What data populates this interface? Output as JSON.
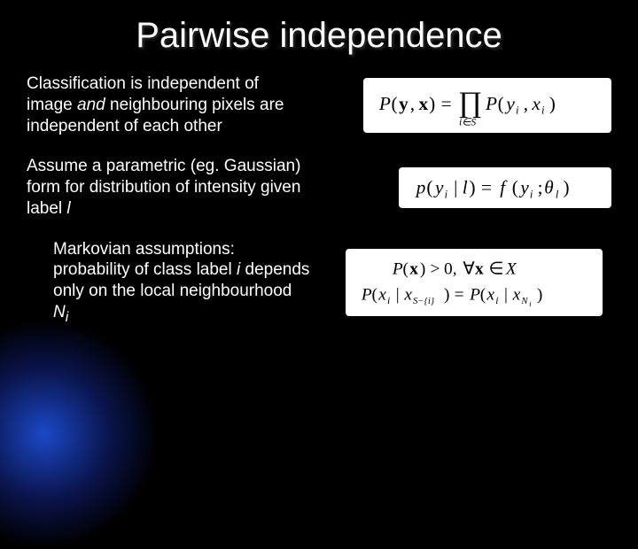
{
  "slide": {
    "title": "Pairwise independence",
    "background_color": "#000000",
    "text_color": "#ffffff",
    "title_fontsize": 40,
    "body_fontsize": 19
  },
  "blocks": [
    {
      "text_pre": "Classification is independent of image ",
      "text_em": "and",
      "text_post": " neighbouring pixels are independent of each other",
      "formula": {
        "type": "product",
        "lhs": "P(y, x)",
        "rhs": "∏ P(y_i, x_i)",
        "subscript": "i ∈ S",
        "box_bg": "#ffffff",
        "box_fg": "#000000"
      }
    },
    {
      "text_pre": "Assume a parametric (eg. Gaussian) form for distribution of intensity given label ",
      "text_em": "l",
      "text_post": "",
      "formula": {
        "type": "equation",
        "lhs": "p(y_i | l)",
        "rhs": "f(y_i; θ_l)",
        "box_bg": "#ffffff",
        "box_fg": "#000000"
      }
    },
    {
      "text_pre": "Markovian assumptions: probability of class label ",
      "text_em": "i",
      "text_mid": " depends only on the local neighbourhood ",
      "text_em2": "N",
      "text_sub": "i",
      "formula": {
        "type": "two-line",
        "line1": "P(x) > 0, ∀x ∈ X",
        "line2": "P(x_i | x_{S-{i}}) = P(x_i | x_{N_i})",
        "box_bg": "#ffffff",
        "box_fg": "#000000"
      }
    }
  ]
}
